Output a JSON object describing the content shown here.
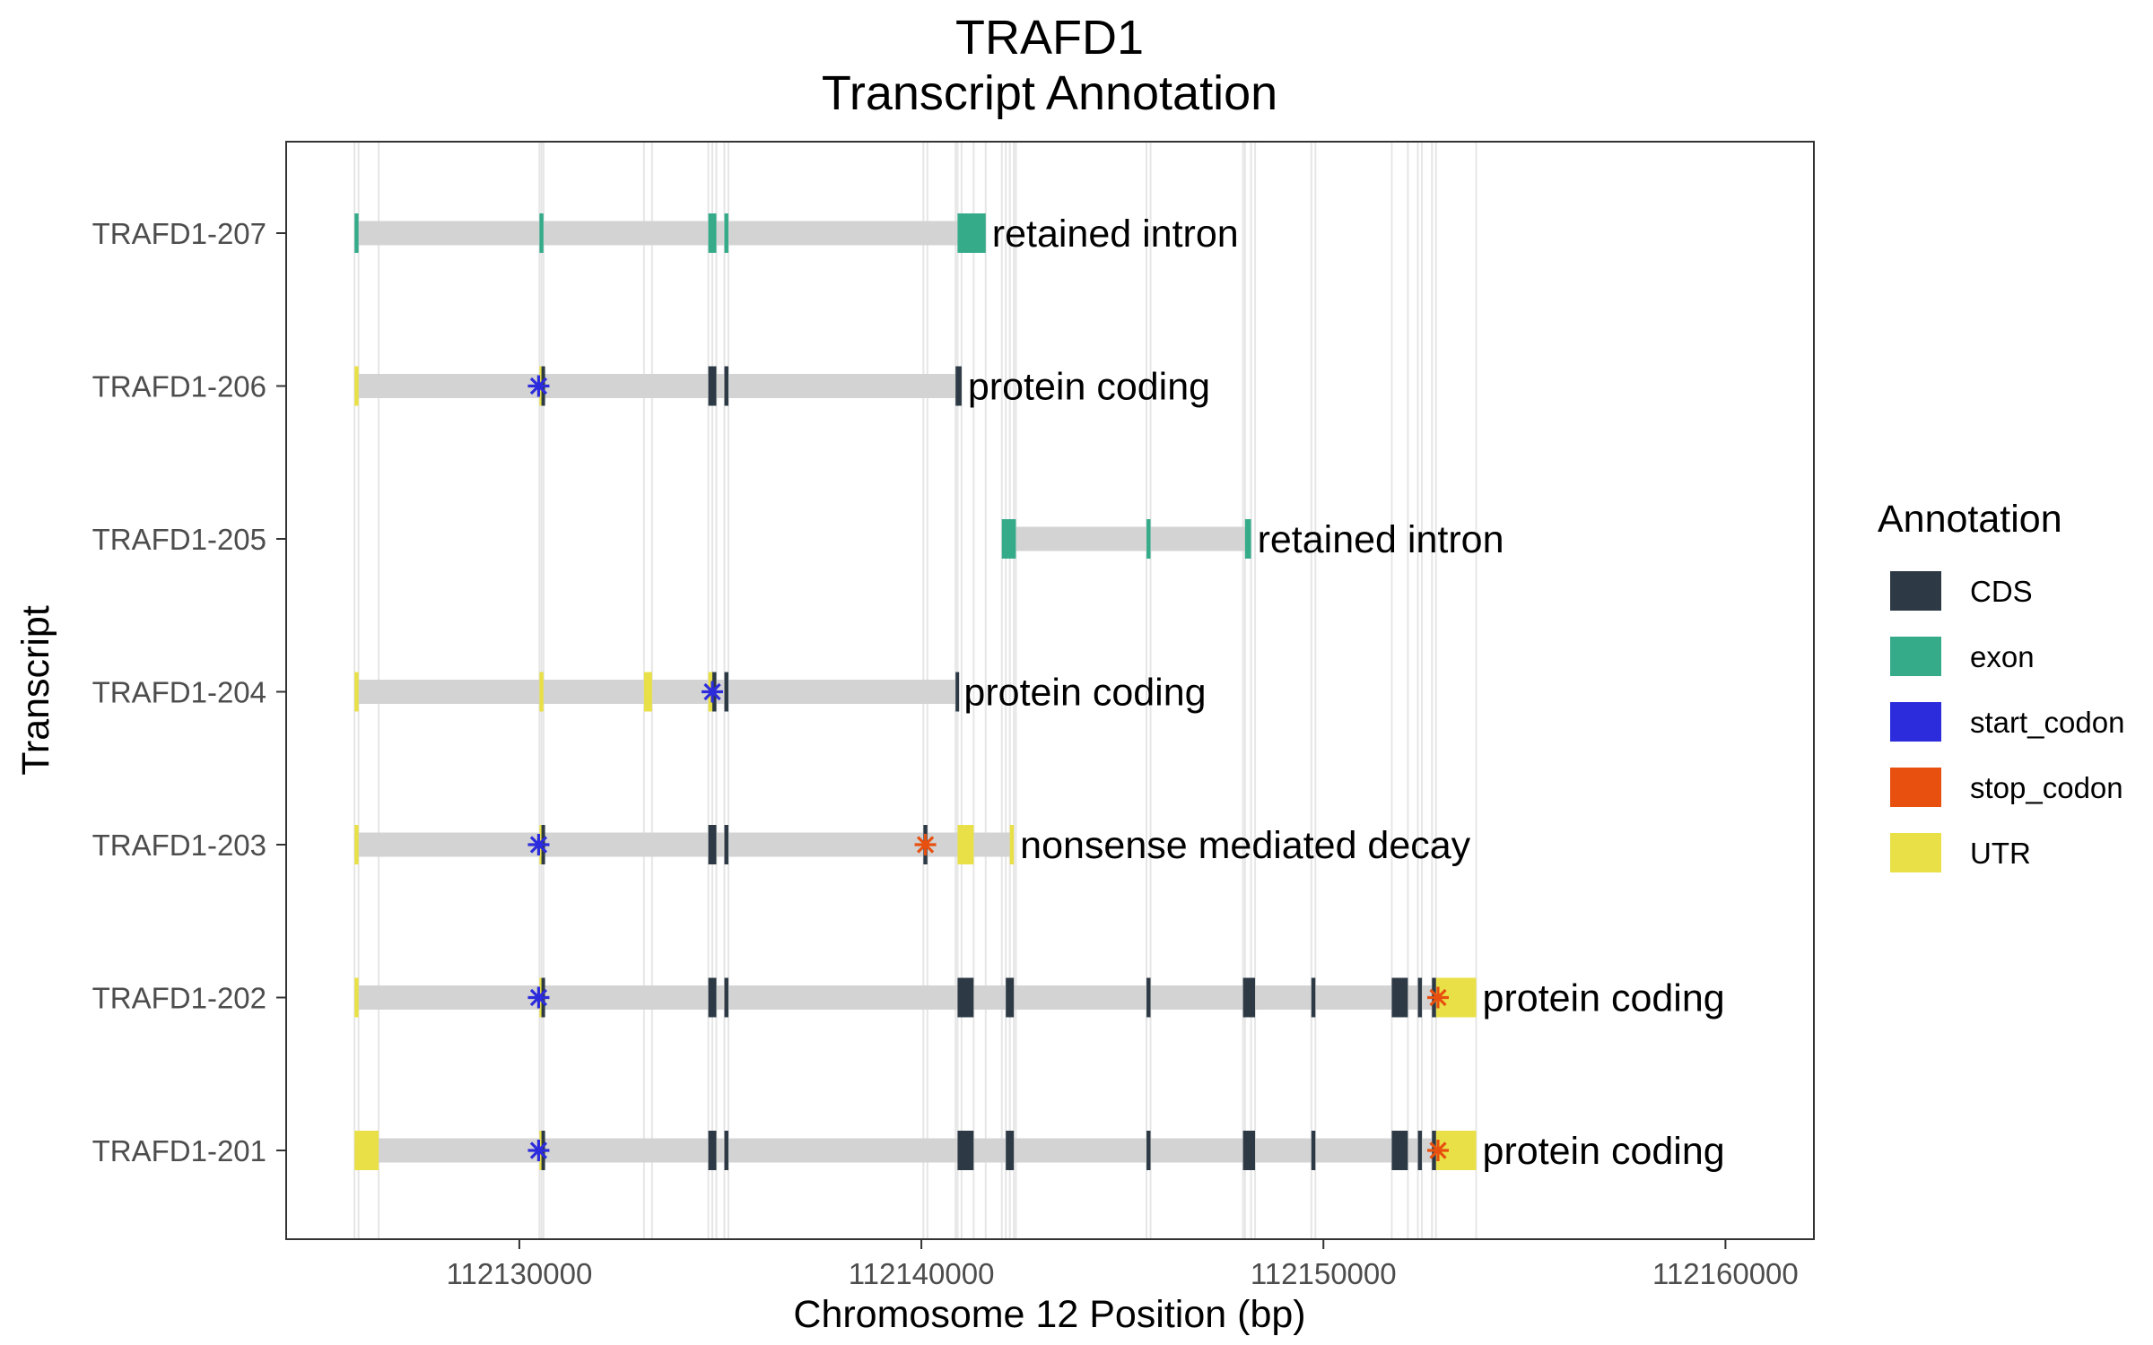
{
  "chart_data": {
    "type": "gene-structure",
    "title_line1": "TRAFD1",
    "title_line2": "Transcript Annotation",
    "xlabel": "Chromosome 12 Position (bp)",
    "ylabel": "Transcript",
    "xlim": [
      112124200,
      112162200
    ],
    "x_ticks": [
      112130000,
      112140000,
      112150000,
      112160000
    ],
    "x_tick_labels": [
      "112130000",
      "112140000",
      "112150000",
      "112160000"
    ],
    "legend": {
      "title": "Annotation",
      "items": [
        {
          "label": "CDS",
          "color": "#2d3a45"
        },
        {
          "label": "exon",
          "color": "#35ab8a"
        },
        {
          "label": "start_codon",
          "color": "#2c2cdc"
        },
        {
          "label": "stop_codon",
          "color": "#e8500f"
        },
        {
          "label": "UTR",
          "color": "#e8e046"
        }
      ]
    },
    "colors": {
      "CDS": "#2d3a45",
      "exon": "#35ab8a",
      "start_codon": "#2c2cdc",
      "stop_codon": "#e8500f",
      "UTR": "#e8e046",
      "intron": "#d3d3d3"
    },
    "transcripts": [
      {
        "name": "TRAFD1-207",
        "type": "retained intron",
        "start": 112125900,
        "end": 112141600,
        "features": [
          {
            "kind": "exon",
            "start": 112125900,
            "end": 112126000
          },
          {
            "kind": "exon",
            "start": 112130500,
            "end": 112130600
          },
          {
            "kind": "exon",
            "start": 112134700,
            "end": 112134900
          },
          {
            "kind": "exon",
            "start": 112135100,
            "end": 112135200
          },
          {
            "kind": "exon",
            "start": 112140900,
            "end": 112141600
          }
        ]
      },
      {
        "name": "TRAFD1-206",
        "type": "protein coding",
        "start": 112125900,
        "end": 112141000,
        "features": [
          {
            "kind": "UTR",
            "start": 112125900,
            "end": 112126000
          },
          {
            "kind": "UTR",
            "start": 112130500,
            "end": 112130550
          },
          {
            "kind": "CDS",
            "start": 112130550,
            "end": 112130600
          },
          {
            "kind": "CDS",
            "start": 112134700,
            "end": 112134900
          },
          {
            "kind": "CDS",
            "start": 112135100,
            "end": 112135200
          },
          {
            "kind": "CDS",
            "start": 112140850,
            "end": 112141000
          },
          {
            "kind": "start_codon",
            "pos": 112130480
          }
        ]
      },
      {
        "name": "TRAFD1-205",
        "type": "retained intron",
        "start": 112142000,
        "end": 112148200,
        "features": [
          {
            "kind": "exon",
            "start": 112142000,
            "end": 112142350
          },
          {
            "kind": "exon",
            "start": 112145600,
            "end": 112145700
          },
          {
            "kind": "exon",
            "start": 112148050,
            "end": 112148200
          }
        ]
      },
      {
        "name": "TRAFD1-204",
        "type": "protein coding",
        "start": 112125900,
        "end": 112140900,
        "features": [
          {
            "kind": "UTR",
            "start": 112125900,
            "end": 112126000
          },
          {
            "kind": "UTR",
            "start": 112130500,
            "end": 112130600
          },
          {
            "kind": "UTR",
            "start": 112133100,
            "end": 112133300
          },
          {
            "kind": "UTR",
            "start": 112134700,
            "end": 112134800
          },
          {
            "kind": "CDS",
            "start": 112134800,
            "end": 112134900
          },
          {
            "kind": "CDS",
            "start": 112135100,
            "end": 112135200
          },
          {
            "kind": "CDS",
            "start": 112140850,
            "end": 112140900
          },
          {
            "kind": "start_codon",
            "pos": 112134800
          }
        ]
      },
      {
        "name": "TRAFD1-203",
        "type": "nonsense mediated decay",
        "start": 112125900,
        "end": 112142300,
        "features": [
          {
            "kind": "UTR",
            "start": 112125900,
            "end": 112126000
          },
          {
            "kind": "UTR",
            "start": 112130500,
            "end": 112130550
          },
          {
            "kind": "CDS",
            "start": 112130550,
            "end": 112130600
          },
          {
            "kind": "CDS",
            "start": 112134700,
            "end": 112134900
          },
          {
            "kind": "CDS",
            "start": 112135100,
            "end": 112135200
          },
          {
            "kind": "CDS",
            "start": 112140050,
            "end": 112140150
          },
          {
            "kind": "UTR",
            "start": 112140900,
            "end": 112141300
          },
          {
            "kind": "UTR",
            "start": 112142200,
            "end": 112142300
          },
          {
            "kind": "start_codon",
            "pos": 112130480
          },
          {
            "kind": "stop_codon",
            "pos": 112140100
          }
        ]
      },
      {
        "name": "TRAFD1-202",
        "type": "protein coding",
        "start": 112125900,
        "end": 112153800,
        "features": [
          {
            "kind": "UTR",
            "start": 112125900,
            "end": 112126000
          },
          {
            "kind": "UTR",
            "start": 112130500,
            "end": 112130550
          },
          {
            "kind": "CDS",
            "start": 112130550,
            "end": 112130600
          },
          {
            "kind": "CDS",
            "start": 112134700,
            "end": 112134900
          },
          {
            "kind": "CDS",
            "start": 112135100,
            "end": 112135200
          },
          {
            "kind": "CDS",
            "start": 112140900,
            "end": 112141300
          },
          {
            "kind": "CDS",
            "start": 112142100,
            "end": 112142300
          },
          {
            "kind": "CDS",
            "start": 112145600,
            "end": 112145700
          },
          {
            "kind": "CDS",
            "start": 112148000,
            "end": 112148300
          },
          {
            "kind": "CDS",
            "start": 112149700,
            "end": 112149800
          },
          {
            "kind": "CDS",
            "start": 112151700,
            "end": 112152100
          },
          {
            "kind": "CDS",
            "start": 112152350,
            "end": 112152450
          },
          {
            "kind": "CDS",
            "start": 112152700,
            "end": 112152800
          },
          {
            "kind": "UTR",
            "start": 112152800,
            "end": 112153800
          },
          {
            "kind": "start_codon",
            "pos": 112130480
          },
          {
            "kind": "stop_codon",
            "pos": 112152850
          }
        ]
      },
      {
        "name": "TRAFD1-201",
        "type": "protein coding",
        "start": 112125900,
        "end": 112153800,
        "features": [
          {
            "kind": "UTR",
            "start": 112125900,
            "end": 112126500
          },
          {
            "kind": "UTR",
            "start": 112130500,
            "end": 112130550
          },
          {
            "kind": "CDS",
            "start": 112130550,
            "end": 112130600
          },
          {
            "kind": "CDS",
            "start": 112134700,
            "end": 112134900
          },
          {
            "kind": "CDS",
            "start": 112135100,
            "end": 112135200
          },
          {
            "kind": "CDS",
            "start": 112140900,
            "end": 112141300
          },
          {
            "kind": "CDS",
            "start": 112142100,
            "end": 112142300
          },
          {
            "kind": "CDS",
            "start": 112145600,
            "end": 112145700
          },
          {
            "kind": "CDS",
            "start": 112148000,
            "end": 112148300
          },
          {
            "kind": "CDS",
            "start": 112149700,
            "end": 112149800
          },
          {
            "kind": "CDS",
            "start": 112151700,
            "end": 112152100
          },
          {
            "kind": "CDS",
            "start": 112152350,
            "end": 112152450
          },
          {
            "kind": "CDS",
            "start": 112152700,
            "end": 112152800
          },
          {
            "kind": "UTR",
            "start": 112152800,
            "end": 112153800
          },
          {
            "kind": "start_codon",
            "pos": 112130480
          },
          {
            "kind": "stop_codon",
            "pos": 112152850
          }
        ]
      }
    ]
  }
}
